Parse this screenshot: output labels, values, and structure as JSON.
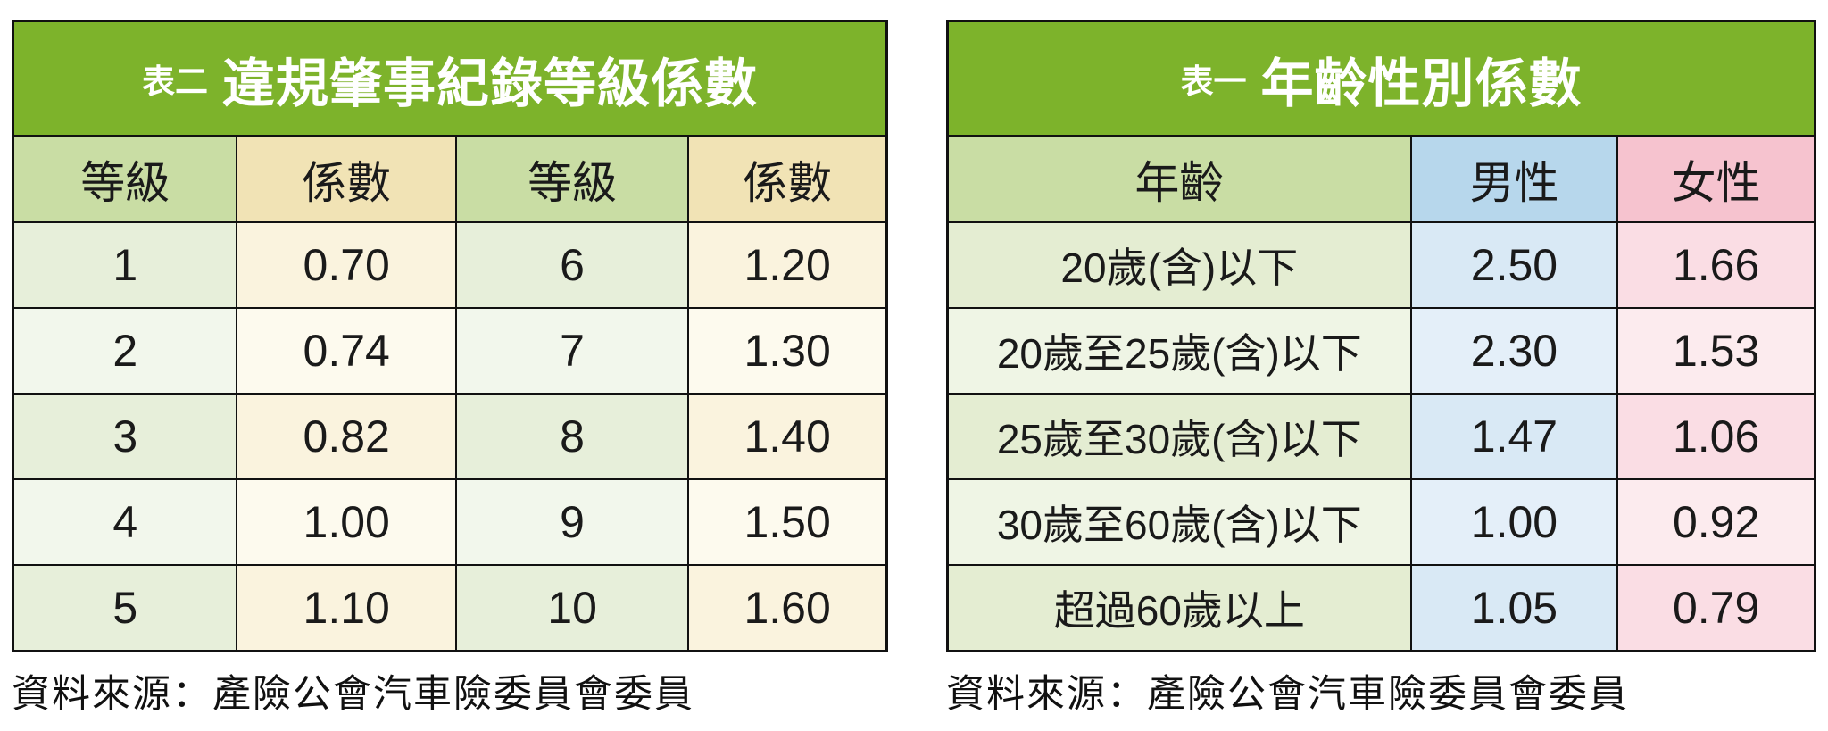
{
  "palette": {
    "title_bar_green": "#7db32b",
    "title_text": "#ffffff",
    "header_green": "#c9dda4",
    "header_tan": "#f1e3b5",
    "header_blue": "#b7d7ec",
    "header_pink": "#f6c3cf",
    "row_green_odd": "#e7efda",
    "row_green_even": "#f2f7ec",
    "row_tan_odd": "#faf3de",
    "row_tan_even": "#fdfaee",
    "row_age_odd": "#e4edd2",
    "row_age_even": "#eff5e5",
    "row_blue_odd": "#d9e9f5",
    "row_blue_even": "#e4eff9",
    "row_pink_odd": "#fadde4",
    "row_pink_even": "#fcebee",
    "border": "#111111",
    "background": "#ffffff"
  },
  "table_violation": {
    "tag": "表二",
    "title": "違規肇事紀錄等級係數",
    "columns": [
      "等級",
      "係數",
      "等級",
      "係數"
    ],
    "rows": [
      [
        "1",
        "0.70",
        "6",
        "1.20"
      ],
      [
        "2",
        "0.74",
        "7",
        "1.30"
      ],
      [
        "3",
        "0.82",
        "8",
        "1.40"
      ],
      [
        "4",
        "1.00",
        "9",
        "1.50"
      ],
      [
        "5",
        "1.10",
        "10",
        "1.60"
      ]
    ],
    "source": "資料來源：產險公會汽車險委員會委員"
  },
  "table_age_gender": {
    "tag": "表一",
    "title": "年齡性別係數",
    "columns": [
      "年齡",
      "男性",
      "女性"
    ],
    "rows": [
      [
        "20歲(含)以下",
        "2.50",
        "1.66"
      ],
      [
        "20歲至25歲(含)以下",
        "2.30",
        "1.53"
      ],
      [
        "25歲至30歲(含)以下",
        "1.47",
        "1.06"
      ],
      [
        "30歲至60歲(含)以下",
        "1.00",
        "0.92"
      ],
      [
        "超過60歲以上",
        "1.05",
        "0.79"
      ]
    ],
    "source": "資料來源：產險公會汽車險委員會委員"
  }
}
